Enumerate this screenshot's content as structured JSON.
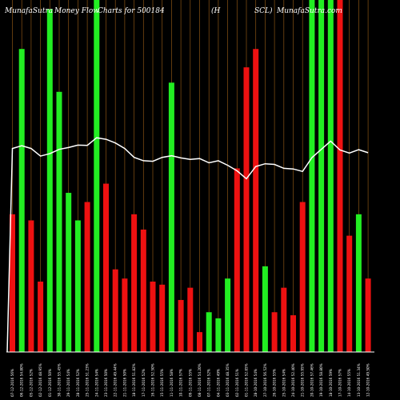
{
  "chart_data": {
    "type": "bar",
    "title_parts": [
      "MunafaSutra",
      "Money Flow",
      "Charts for 500184",
      "(H",
      "SCL)",
      "MunafaSutra.com"
    ],
    "x_tick_labels": [
      "07-12-2016 56%",
      "06-12-2016 54.80%",
      "05-12-2016 52%",
      "02-12-2016 48.95%",
      "01-12-2016 50%",
      "30-11-2016 55.45%",
      "29-11-2016 54%",
      "28-11-2016 52%",
      "25-11-2016 51.23%",
      "24-11-2016 54%",
      "23-11-2016 50%",
      "22-11-2016 49.44%",
      "21-11-2016 50%",
      "18-11-2016 51.82%",
      "17-11-2016 52%",
      "16-11-2016 52.50%",
      "15-11-2016 55%",
      "11-11-2016 58%",
      "10-11-2016 57%",
      "09-11-2016 55%",
      "08-11-2016 54.20%",
      "07-11-2016 52%",
      "04-11-2016 49%",
      "03-11-2016 48.35%",
      "02-11-2016 51%",
      "01-11-2016 52.85%",
      "28-10-2016 54%",
      "27-10-2016 56.52%",
      "26-10-2016 55%",
      "25-10-2016 54%",
      "24-10-2016 52.40%",
      "21-10-2016 55.95%",
      "20-10-2016 57.46%",
      "19-10-2016 58.80%",
      "18-10-2016 59%",
      "17-10-2016 57%",
      "14-10-2016 55%",
      "13-10-2016 51.34%",
      "12-10-2016 49.50%"
    ],
    "bars": [
      {
        "direction": "down",
        "value": 45
      },
      {
        "direction": "up",
        "value": 99
      },
      {
        "direction": "down",
        "value": 43
      },
      {
        "direction": "down",
        "value": 23
      },
      {
        "direction": "up",
        "value": 112
      },
      {
        "direction": "up",
        "value": 85
      },
      {
        "direction": "up",
        "value": 52
      },
      {
        "direction": "up",
        "value": 43
      },
      {
        "direction": "down",
        "value": 49
      },
      {
        "direction": "up",
        "value": 115
      },
      {
        "direction": "down",
        "value": 55
      },
      {
        "direction": "down",
        "value": 27
      },
      {
        "direction": "down",
        "value": 24
      },
      {
        "direction": "down",
        "value": 45
      },
      {
        "direction": "down",
        "value": 40
      },
      {
        "direction": "down",
        "value": 23
      },
      {
        "direction": "down",
        "value": 22
      },
      {
        "direction": "up",
        "value": 88
      },
      {
        "direction": "down",
        "value": 17
      },
      {
        "direction": "down",
        "value": 21
      },
      {
        "direction": "down",
        "value": 6.5
      },
      {
        "direction": "up",
        "value": 13
      },
      {
        "direction": "up",
        "value": 11
      },
      {
        "direction": "up",
        "value": 24
      },
      {
        "direction": "down",
        "value": 60
      },
      {
        "direction": "down",
        "value": 93
      },
      {
        "direction": "down",
        "value": 99
      },
      {
        "direction": "up",
        "value": 28
      },
      {
        "direction": "down",
        "value": 13
      },
      {
        "direction": "down",
        "value": 21
      },
      {
        "direction": "down",
        "value": 12
      },
      {
        "direction": "down",
        "value": 49
      },
      {
        "direction": "up",
        "value": 115
      },
      {
        "direction": "up",
        "value": 115
      },
      {
        "direction": "up",
        "value": 115
      },
      {
        "direction": "down",
        "value": 115
      },
      {
        "direction": "down",
        "value": 38
      },
      {
        "direction": "up",
        "value": 45
      },
      {
        "direction": "down",
        "value": 24
      }
    ],
    "line_series": [
      66.5,
      67.4,
      66.5,
      64,
      64.8,
      66.2,
      66.8,
      67.6,
      67.5,
      70,
      69.5,
      68.3,
      66.5,
      63.6,
      62.5,
      62.3,
      63.6,
      64.1,
      63.4,
      62.9,
      63.2,
      61.8,
      62.5,
      61,
      59.2,
      56.6,
      60.6,
      61.5,
      61.3,
      60,
      59.8,
      59,
      63.5,
      66.2,
      68.9,
      66,
      65,
      66.1,
      65.1
    ],
    "ylim": [
      0,
      115
    ],
    "line_ylim": [
      0,
      115
    ],
    "colors": {
      "background": "#000000",
      "up_bar": "#22ee22",
      "down_bar": "#ee1111",
      "line": "#ffffff",
      "grid": "#8a5414",
      "baseline": "#ffffff",
      "text": "#ffffff"
    }
  }
}
